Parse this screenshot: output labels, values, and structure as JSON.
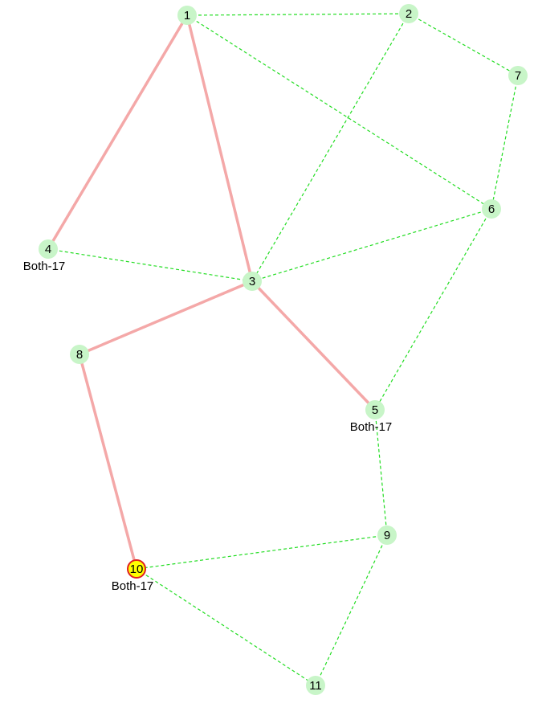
{
  "nodes": [
    {
      "label": "1"
    },
    {
      "label": "2"
    },
    {
      "label": "3"
    },
    {
      "label": "4",
      "sublabel": "Both-17"
    },
    {
      "label": "5",
      "sublabel": "Both-17"
    },
    {
      "label": "6"
    },
    {
      "label": "7"
    },
    {
      "label": "8"
    },
    {
      "label": "9"
    },
    {
      "label": "10",
      "sublabel": "Both-17"
    },
    {
      "label": "11"
    }
  ]
}
